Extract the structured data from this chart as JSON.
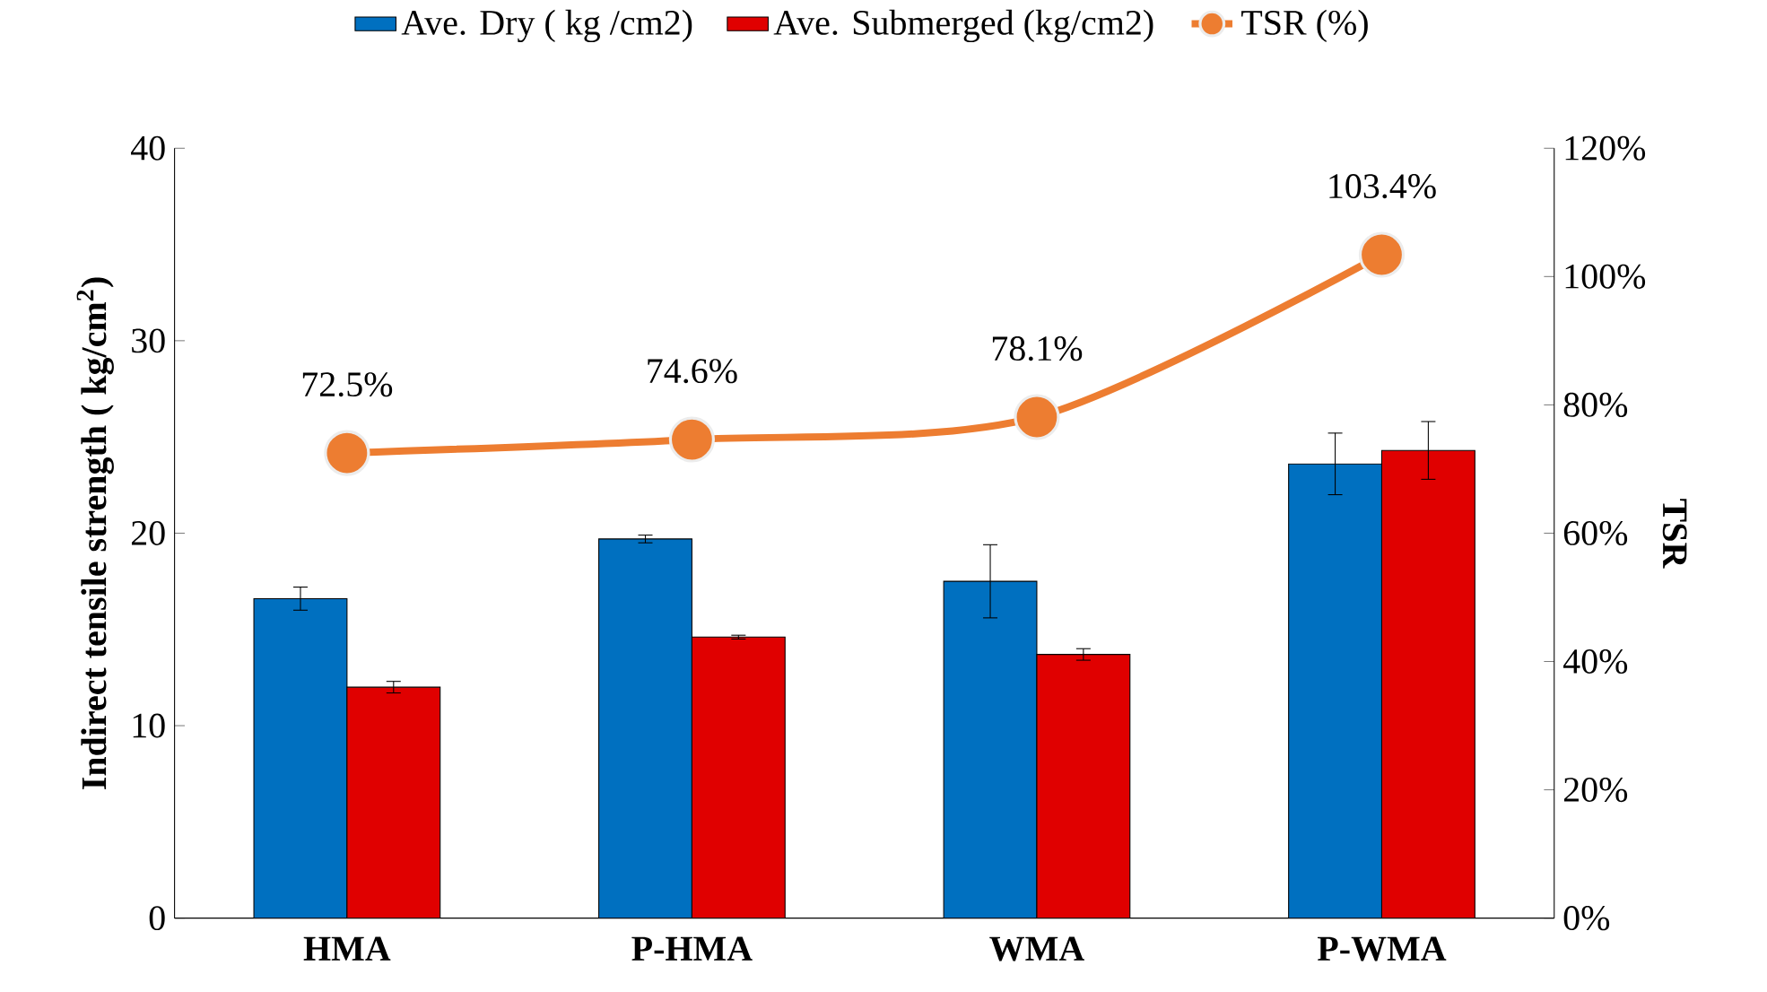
{
  "chart_data": {
    "type": "bar",
    "ylabel": "Indirect tensile strength ( kg/cm$^{2}$)",
    "y2label": "TSR",
    "categories": [
      "HMA",
      "P-HMA",
      "WMA",
      "P-WMA"
    ],
    "series": [
      {
        "name": "Ave. Dry ( kg /cm2)",
        "color": "#0070c0",
        "values": [
          16.6,
          19.7,
          17.5,
          23.6
        ],
        "errors": [
          0.6,
          0.2,
          1.9,
          1.6
        ]
      },
      {
        "name": "Ave. Submerged (kg/cm2)",
        "color": "#e00000",
        "values": [
          12.0,
          14.6,
          13.7,
          24.3
        ],
        "errors": [
          0.3,
          0.1,
          0.3,
          1.5
        ]
      },
      {
        "name": "TSR (%)",
        "type": "line",
        "axis": "y2",
        "color": "#ed7d31",
        "marker": "circle",
        "values": [
          72.5,
          74.6,
          78.1,
          103.4
        ],
        "value_labels": [
          "72.5%",
          "74.6%",
          "78.1%",
          "103.4%"
        ]
      }
    ],
    "ylim": [
      0,
      40
    ],
    "yticks": [
      0,
      10,
      20,
      30,
      40
    ],
    "y2lim": [
      0,
      120
    ],
    "y2ticks": [
      {
        "value": 0,
        "label": "0%"
      },
      {
        "value": 20,
        "label": "20%"
      },
      {
        "value": 40,
        "label": "40%"
      },
      {
        "value": 60,
        "label": "60%"
      },
      {
        "value": 80,
        "label": "80%"
      },
      {
        "value": 100,
        "label": "100%"
      },
      {
        "value": 120,
        "label": "120%"
      }
    ],
    "grid": false,
    "legend": "top"
  }
}
